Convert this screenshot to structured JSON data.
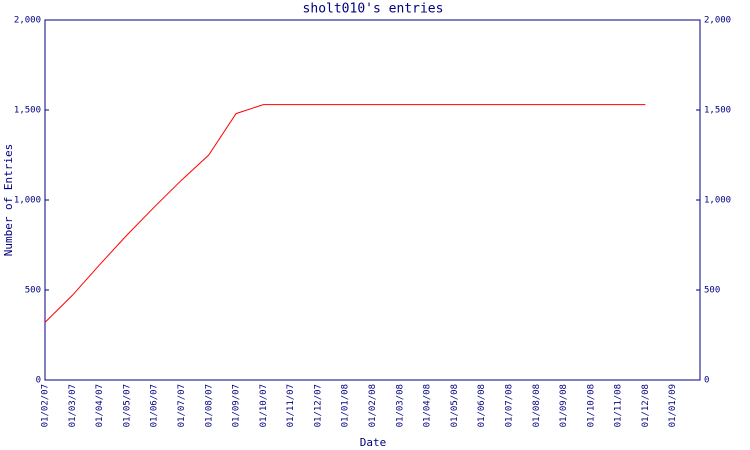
{
  "chart_data": {
    "type": "line",
    "title": "sholt010's entries",
    "x_label": "Date",
    "y_label": "Number of Entries",
    "x": [
      "01/02/07",
      "01/03/07",
      "01/04/07",
      "01/05/07",
      "01/06/07",
      "01/07/07",
      "01/08/07",
      "01/09/07",
      "01/10/07",
      "01/11/07",
      "01/12/07",
      "01/01/08",
      "01/02/08",
      "01/03/08",
      "01/04/08",
      "01/05/08",
      "01/06/08",
      "01/07/08",
      "01/08/08",
      "01/09/08",
      "01/10/08",
      "01/11/08",
      "01/12/08",
      "01/01/09"
    ],
    "series": [
      {
        "name": "sholt010",
        "color": "#ff0000",
        "values": [
          320,
          470,
          640,
          805,
          960,
          1110,
          1250,
          1480,
          1530,
          1530,
          1530,
          1530,
          1530,
          1530,
          1530,
          1530,
          1530,
          1530,
          1530,
          1530,
          1530,
          1530,
          1530,
          null
        ]
      }
    ],
    "ylim": [
      0,
      2000
    ],
    "yticks": [
      0,
      500,
      {
        "value": 1000,
        "label": "1,000"
      },
      {
        "value": 1500,
        "label": "1,500"
      },
      {
        "value": 2000,
        "label": "2,000"
      }
    ],
    "axis_color": "#000080",
    "grid": false,
    "right_axis": true
  }
}
